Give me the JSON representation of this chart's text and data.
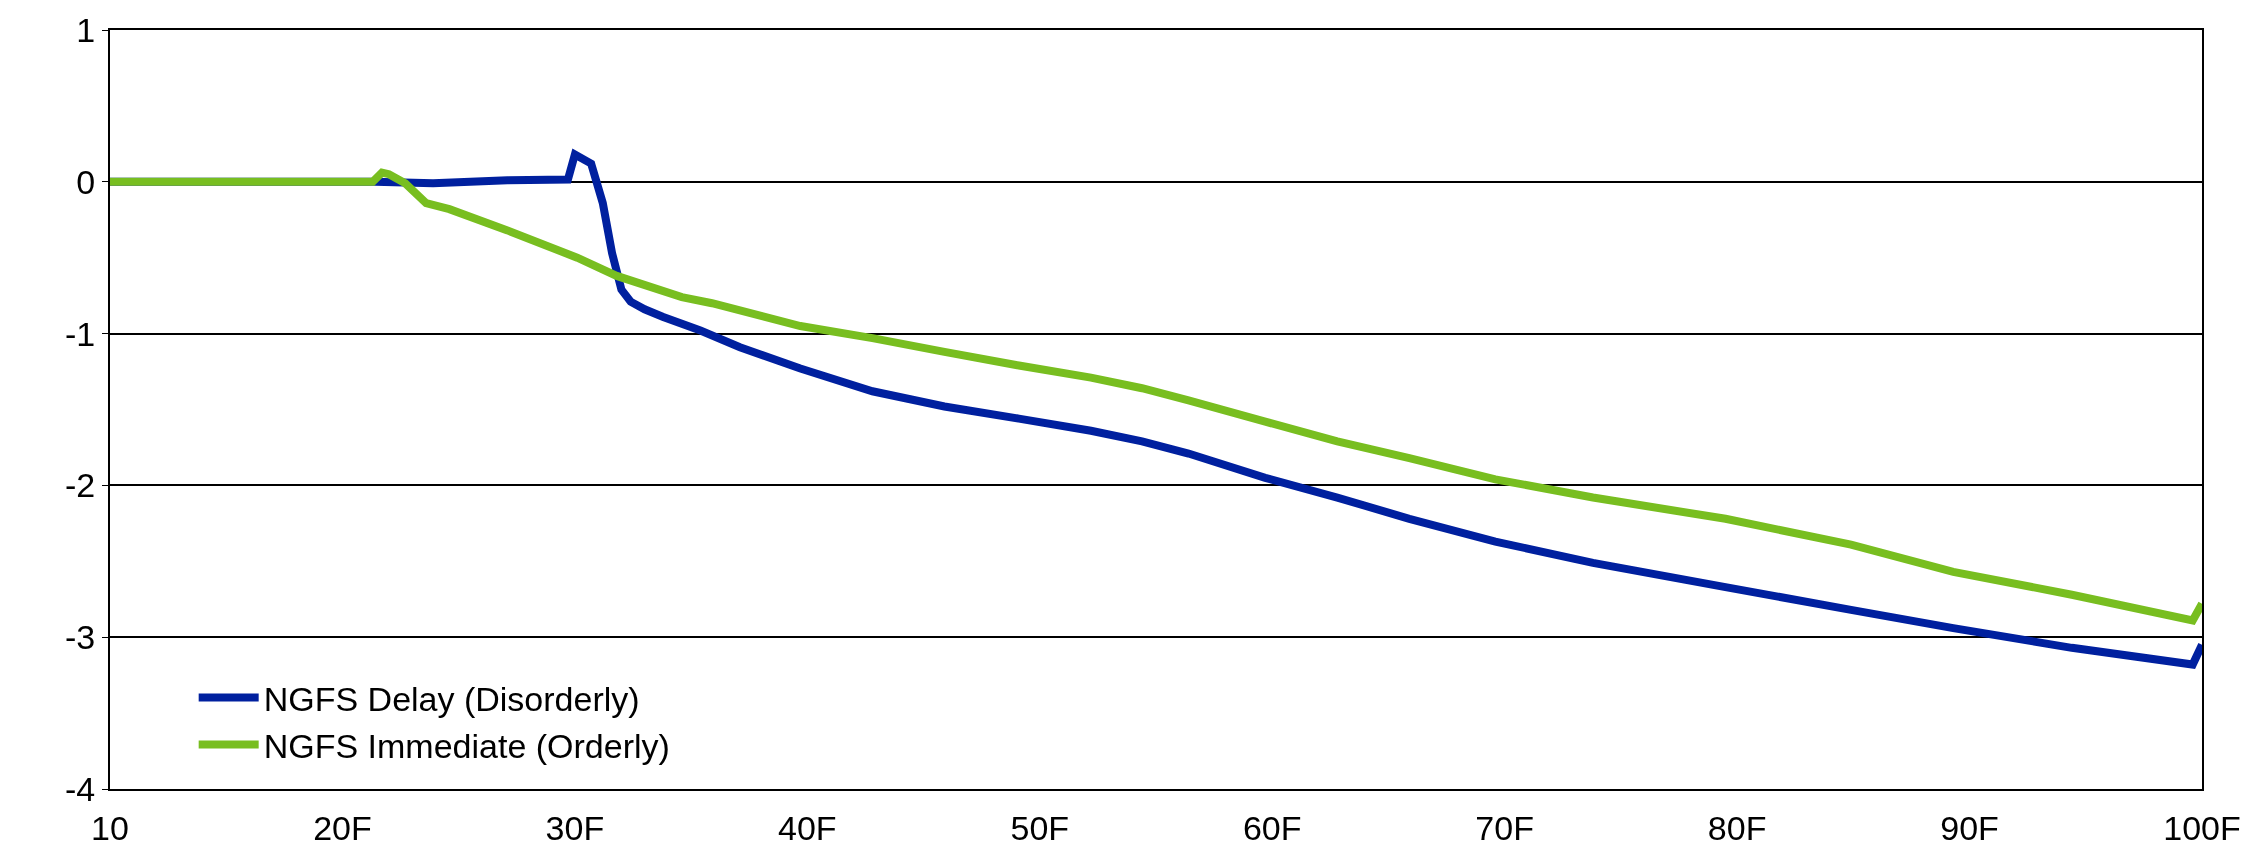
{
  "chart_data": {
    "type": "line",
    "xlim": [
      10,
      100
    ],
    "ylim": [
      -4,
      1
    ],
    "xticks": [
      10,
      {
        "value": 20,
        "label": "20F"
      },
      {
        "value": 30,
        "label": "30F"
      },
      {
        "value": 40,
        "label": "40F"
      },
      {
        "value": 50,
        "label": "50F"
      },
      {
        "value": 60,
        "label": "60F"
      },
      {
        "value": 70,
        "label": "70F"
      },
      {
        "value": 80,
        "label": "80F"
      },
      {
        "value": 90,
        "label": "90F"
      },
      {
        "value": 100,
        "label": "100F"
      }
    ],
    "yticks": [
      -4,
      -3,
      -2,
      -1,
      0,
      1
    ],
    "grid": "y",
    "legend": "bottom left",
    "marker": "none",
    "line_style": "solid",
    "series": [
      {
        "name": "NGFS Delay (Disorderly)",
        "color": "#00209f",
        "x": [
          10,
          21.4,
          23.9,
          27.1,
          29.7,
          30.0,
          30.7,
          31.2,
          31.6,
          32.0,
          32.4,
          33.0,
          33.8,
          35.4,
          37.1,
          39.7,
          42.8,
          45.9,
          49.1,
          52.2,
          54.4,
          56.4,
          59.7,
          62.8,
          65.9,
          69.6,
          73.8,
          79.5,
          84.9,
          89.3,
          94.4,
          99.6,
          100
        ],
        "values": [
          0,
          0,
          -0.01,
          0.01,
          0.015,
          0.18,
          0.12,
          -0.14,
          -0.47,
          -0.71,
          -0.79,
          -0.84,
          -0.89,
          -0.98,
          -1.09,
          -1.23,
          -1.38,
          -1.48,
          -1.56,
          -1.64,
          -1.71,
          -1.79,
          -1.95,
          -2.08,
          -2.22,
          -2.37,
          -2.51,
          -2.67,
          -2.82,
          -2.94,
          -3.07,
          -3.18,
          -3.05
        ]
      },
      {
        "name": "NGFS Immediate (Orderly)",
        "color": "#78be20",
        "x": [
          10,
          21.3,
          21.7,
          22.0,
          22.7,
          23.6,
          24.6,
          27.1,
          30.1,
          31.8,
          34.6,
          35.9,
          39.7,
          42.8,
          45.9,
          49.1,
          52.2,
          54.4,
          56.4,
          59.7,
          62.8,
          65.9,
          69.6,
          73.8,
          79.5,
          84.9,
          89.3,
          94.4,
          99.6,
          100
        ],
        "values": [
          0,
          0,
          0.06,
          0.05,
          -0.01,
          -0.14,
          -0.18,
          -0.32,
          -0.5,
          -0.62,
          -0.76,
          -0.8,
          -0.95,
          -1.03,
          -1.12,
          -1.21,
          -1.29,
          -1.36,
          -1.44,
          -1.58,
          -1.71,
          -1.82,
          -1.96,
          -2.08,
          -2.22,
          -2.39,
          -2.57,
          -2.72,
          -2.89,
          -2.78
        ]
      }
    ]
  }
}
